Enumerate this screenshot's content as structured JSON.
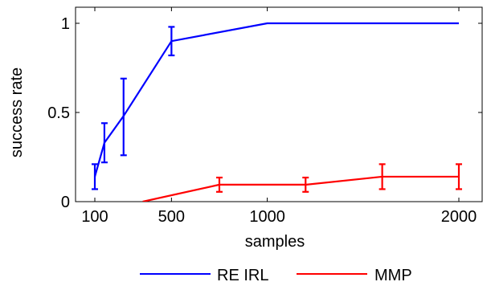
{
  "chart_data": {
    "type": "line",
    "xlabel": "samples",
    "ylabel": "success rate",
    "xlim": [
      50,
      2150
    ],
    "ylim": [
      0,
      1.08
    ],
    "xticks": [
      100,
      500,
      1000,
      2000
    ],
    "yticks": [
      0,
      0.5,
      1
    ],
    "xtick_labels": [
      "100",
      "500",
      "1000",
      "2000"
    ],
    "ytick_labels": [
      "0",
      "0.5",
      "1"
    ],
    "grid": false,
    "legend_position": "bottom-center",
    "series": [
      {
        "name": "RE IRL",
        "color": "#0000ff",
        "points": [
          {
            "x": 100,
            "y": 0.14,
            "lo": 0.07,
            "hi": 0.21
          },
          {
            "x": 150,
            "y": 0.33,
            "lo": 0.22,
            "hi": 0.44
          },
          {
            "x": 250,
            "y": 0.48,
            "lo": 0.26,
            "hi": 0.69
          },
          {
            "x": 500,
            "y": 0.9,
            "lo": 0.82,
            "hi": 0.98
          },
          {
            "x": 1000,
            "y": 1.0
          },
          {
            "x": 2000,
            "y": 1.0
          }
        ]
      },
      {
        "name": "MMP",
        "color": "#ff0000",
        "points": [
          {
            "x": 350,
            "y": 0.0
          },
          {
            "x": 750,
            "y": 0.095,
            "lo": 0.055,
            "hi": 0.135
          },
          {
            "x": 1200,
            "y": 0.095,
            "lo": 0.055,
            "hi": 0.135
          },
          {
            "x": 1600,
            "y": 0.14,
            "lo": 0.07,
            "hi": 0.21
          },
          {
            "x": 2000,
            "y": 0.14,
            "lo": 0.07,
            "hi": 0.21
          }
        ]
      }
    ]
  }
}
